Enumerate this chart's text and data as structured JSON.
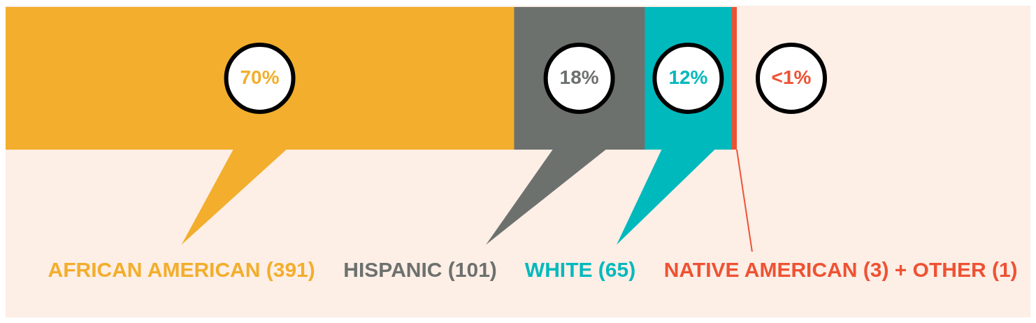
{
  "chart_data": {
    "type": "bar",
    "orientation": "horizontal",
    "stacked": true,
    "categories": [
      null
    ],
    "series": [
      {
        "name": "AFRICAN AMERICAN (391)",
        "color": "#f2ae2c",
        "values": [
          70
        ],
        "value_labels": [
          "70%"
        ]
      },
      {
        "name": "HISPANIC (101)",
        "color": "#6d716e",
        "values": [
          18
        ],
        "value_labels": [
          "18%"
        ]
      },
      {
        "name": "WHITE (65)",
        "color": "#00b9bd",
        "values": [
          12
        ],
        "value_labels": [
          "12%"
        ]
      },
      {
        "name": "NATIVE AMERICAN (3) + OTHER (1)",
        "color": "#ee5233",
        "values": [
          0.7
        ],
        "value_labels": [
          "<1%"
        ]
      }
    ]
  }
}
